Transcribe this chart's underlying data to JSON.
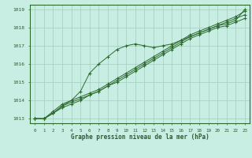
{
  "title": "Graphe pression niveau de la mer (hPa)",
  "xlabel": "Graphe pression niveau de la mer (hPa)",
  "x": [
    0,
    1,
    2,
    3,
    4,
    5,
    6,
    7,
    8,
    9,
    10,
    11,
    12,
    13,
    14,
    15,
    16,
    17,
    18,
    19,
    20,
    21,
    22,
    23
  ],
  "series": [
    [
      1013.0,
      1013.0,
      1013.3,
      1013.6,
      1013.8,
      1014.0,
      1014.3,
      1014.5,
      1014.8,
      1015.0,
      1015.3,
      1015.6,
      1015.9,
      1016.2,
      1016.5,
      1016.8,
      1017.1,
      1017.4,
      1017.6,
      1017.8,
      1018.0,
      1018.1,
      1018.3,
      1018.5
    ],
    [
      1013.0,
      1013.0,
      1013.3,
      1013.7,
      1013.9,
      1014.1,
      1014.3,
      1014.5,
      1014.8,
      1015.1,
      1015.4,
      1015.7,
      1016.0,
      1016.3,
      1016.6,
      1016.9,
      1017.2,
      1017.5,
      1017.7,
      1017.9,
      1018.1,
      1018.3,
      1018.5,
      1018.7
    ],
    [
      1013.0,
      1013.0,
      1013.3,
      1013.7,
      1014.0,
      1014.2,
      1014.4,
      1014.6,
      1014.9,
      1015.2,
      1015.5,
      1015.8,
      1016.1,
      1016.4,
      1016.7,
      1017.0,
      1017.3,
      1017.6,
      1017.8,
      1018.0,
      1018.2,
      1018.4,
      1018.6,
      1018.9
    ],
    [
      1013.0,
      1013.0,
      1013.4,
      1013.8,
      1014.0,
      1014.5,
      1015.5,
      1016.0,
      1016.4,
      1016.8,
      1017.0,
      1017.1,
      1017.0,
      1016.9,
      1017.0,
      1017.1,
      1017.3,
      1017.5,
      1017.7,
      1017.9,
      1018.1,
      1018.2,
      1018.4,
      1019.0
    ]
  ],
  "line_color": "#2d6a2d",
  "marker_color": "#2d6a2d",
  "bg_color": "#c8eee4",
  "grid_color": "#a0ccbc",
  "text_color": "#2d5a2d",
  "ylim": [
    1012.75,
    1019.25
  ],
  "yticks": [
    1013,
    1014,
    1015,
    1016,
    1017,
    1018,
    1019
  ],
  "xticks": [
    0,
    1,
    2,
    3,
    4,
    5,
    6,
    7,
    8,
    9,
    10,
    11,
    12,
    13,
    14,
    15,
    16,
    17,
    18,
    19,
    20,
    21,
    22,
    23
  ],
  "xlim": [
    -0.5,
    23.5
  ]
}
